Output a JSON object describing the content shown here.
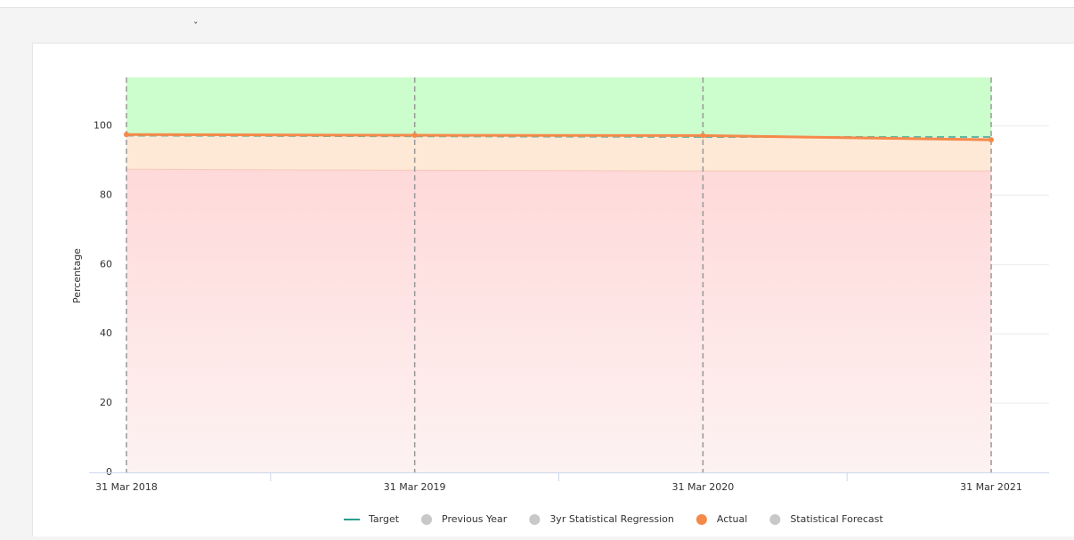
{
  "chart_data": {
    "type": "line",
    "y_label": "Percentage",
    "categories": [
      "31 Mar 2018",
      "31 Mar 2019",
      "31 Mar 2020",
      "31 Mar 2021"
    ],
    "ylim": [
      0,
      114
    ],
    "yticks": [
      0,
      20,
      40,
      60,
      80,
      100
    ],
    "grid": true,
    "bands": {
      "red_top": [
        87.5,
        87.2,
        87,
        87
      ],
      "colors": {
        "red": "#ffd9d9",
        "orange": "#fde9d6",
        "green": "#ccfdcc"
      }
    },
    "series": [
      {
        "name": "Target",
        "color": "#2a9d8f",
        "dashed": true,
        "visible": true,
        "values": [
          97.2,
          97,
          96.8,
          96.8
        ]
      },
      {
        "name": "Previous Year",
        "color": "#c8c8c8",
        "visible": false
      },
      {
        "name": "3yr Statistical Regression",
        "color": "#c8c8c8",
        "visible": false
      },
      {
        "name": "Actual",
        "color": "#f5894a",
        "visible": true,
        "values": [
          97.5,
          97.3,
          97.2,
          96
        ]
      },
      {
        "name": "Statistical Forecast",
        "color": "#c8c8c8",
        "visible": false
      }
    ]
  }
}
